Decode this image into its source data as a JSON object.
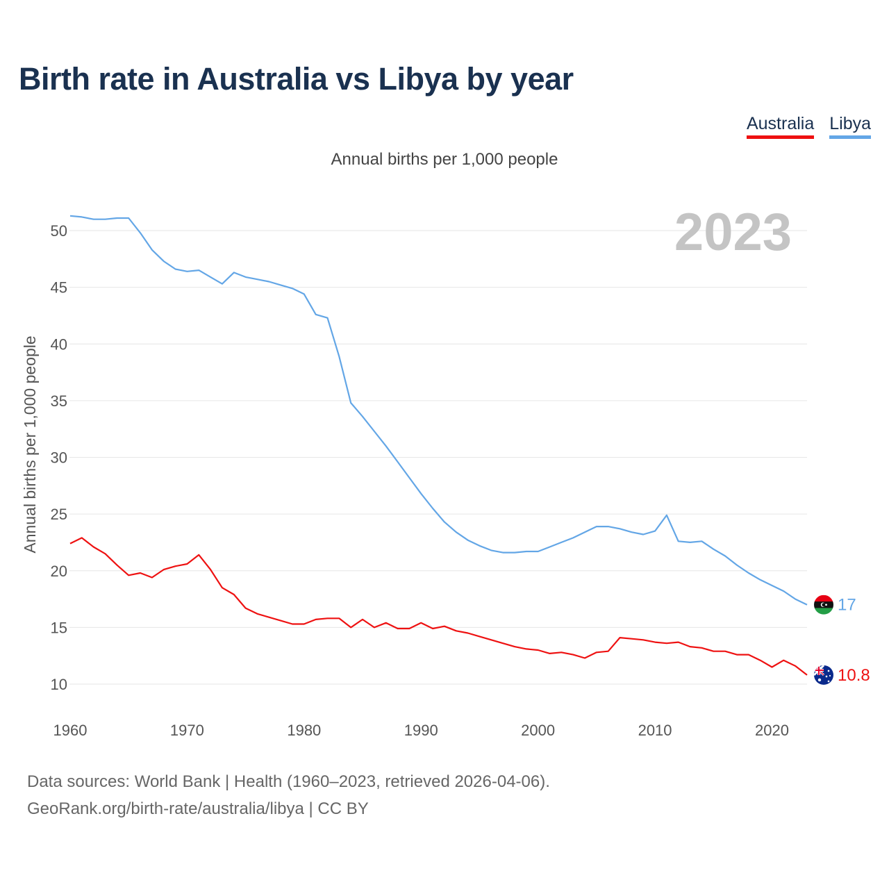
{
  "title": "Birth rate in Australia vs Libya by year",
  "legend": {
    "australia": "Australia",
    "libya": "Libya"
  },
  "subtitle": "Annual births per 1,000 people",
  "source": {
    "line1": "Data sources: World Bank | Health (1960–2023, retrieved 2026-04-06).",
    "line2": "GeoRank.org/birth-rate/australia/libya | CC BY"
  },
  "colors": {
    "australia": "#ee1111",
    "libya": "#63a6e6",
    "grid": "#e6e6e6",
    "year": "#c4c4c4"
  },
  "chart_data": {
    "type": "line",
    "title": "Birth rate in Australia vs Libya by year",
    "ylabel": "Annual births per 1,000 people",
    "xlabel": "",
    "year_display": "2023",
    "xlim": [
      1960,
      2023
    ],
    "ylim": [
      7.5,
      52.5
    ],
    "xticks": [
      1960,
      1970,
      1980,
      1990,
      2000,
      2010,
      2020
    ],
    "yticks": [
      10,
      15,
      20,
      25,
      30,
      35,
      40,
      45,
      50
    ],
    "grid": true,
    "legend_position": "top-right",
    "x": [
      1960,
      1961,
      1962,
      1963,
      1964,
      1965,
      1966,
      1967,
      1968,
      1969,
      1970,
      1971,
      1972,
      1973,
      1974,
      1975,
      1976,
      1977,
      1978,
      1979,
      1980,
      1981,
      1982,
      1983,
      1984,
      1985,
      1986,
      1987,
      1988,
      1989,
      1990,
      1991,
      1992,
      1993,
      1994,
      1995,
      1996,
      1997,
      1998,
      1999,
      2000,
      2001,
      2002,
      2003,
      2004,
      2005,
      2006,
      2007,
      2008,
      2009,
      2010,
      2011,
      2012,
      2013,
      2014,
      2015,
      2016,
      2017,
      2018,
      2019,
      2020,
      2021,
      2022,
      2023
    ],
    "series": [
      {
        "name": "Australia",
        "end_label": "10.8",
        "values": [
          22.4,
          22.9,
          22.1,
          21.5,
          20.5,
          19.6,
          19.8,
          19.4,
          20.1,
          20.4,
          20.6,
          21.4,
          20.1,
          18.5,
          17.9,
          16.7,
          16.2,
          15.9,
          15.6,
          15.3,
          15.3,
          15.7,
          15.8,
          15.8,
          15.0,
          15.7,
          15.0,
          15.4,
          14.9,
          14.9,
          15.4,
          14.9,
          15.1,
          14.7,
          14.5,
          14.2,
          13.9,
          13.6,
          13.3,
          13.1,
          13.0,
          12.7,
          12.8,
          12.6,
          12.3,
          12.8,
          12.9,
          14.1,
          14.0,
          13.9,
          13.7,
          13.6,
          13.7,
          13.3,
          13.2,
          12.9,
          12.9,
          12.6,
          12.6,
          12.1,
          11.5,
          12.1,
          11.6,
          10.8
        ]
      },
      {
        "name": "Libya",
        "end_label": "17",
        "values": [
          51.3,
          51.2,
          51.0,
          51.0,
          51.1,
          51.1,
          49.8,
          48.3,
          47.3,
          46.6,
          46.4,
          46.5,
          45.9,
          45.3,
          46.3,
          45.9,
          45.7,
          45.5,
          45.2,
          44.9,
          44.4,
          42.6,
          42.3,
          38.9,
          34.8,
          33.6,
          32.3,
          31.0,
          29.6,
          28.2,
          26.8,
          25.5,
          24.3,
          23.4,
          22.7,
          22.2,
          21.8,
          21.6,
          21.6,
          21.7,
          21.7,
          22.1,
          22.5,
          22.9,
          23.4,
          23.9,
          23.9,
          23.7,
          23.4,
          23.2,
          23.5,
          24.9,
          22.6,
          22.5,
          22.6,
          21.9,
          21.3,
          20.5,
          19.8,
          19.2,
          18.7,
          18.2,
          17.5,
          17.0
        ]
      }
    ]
  }
}
